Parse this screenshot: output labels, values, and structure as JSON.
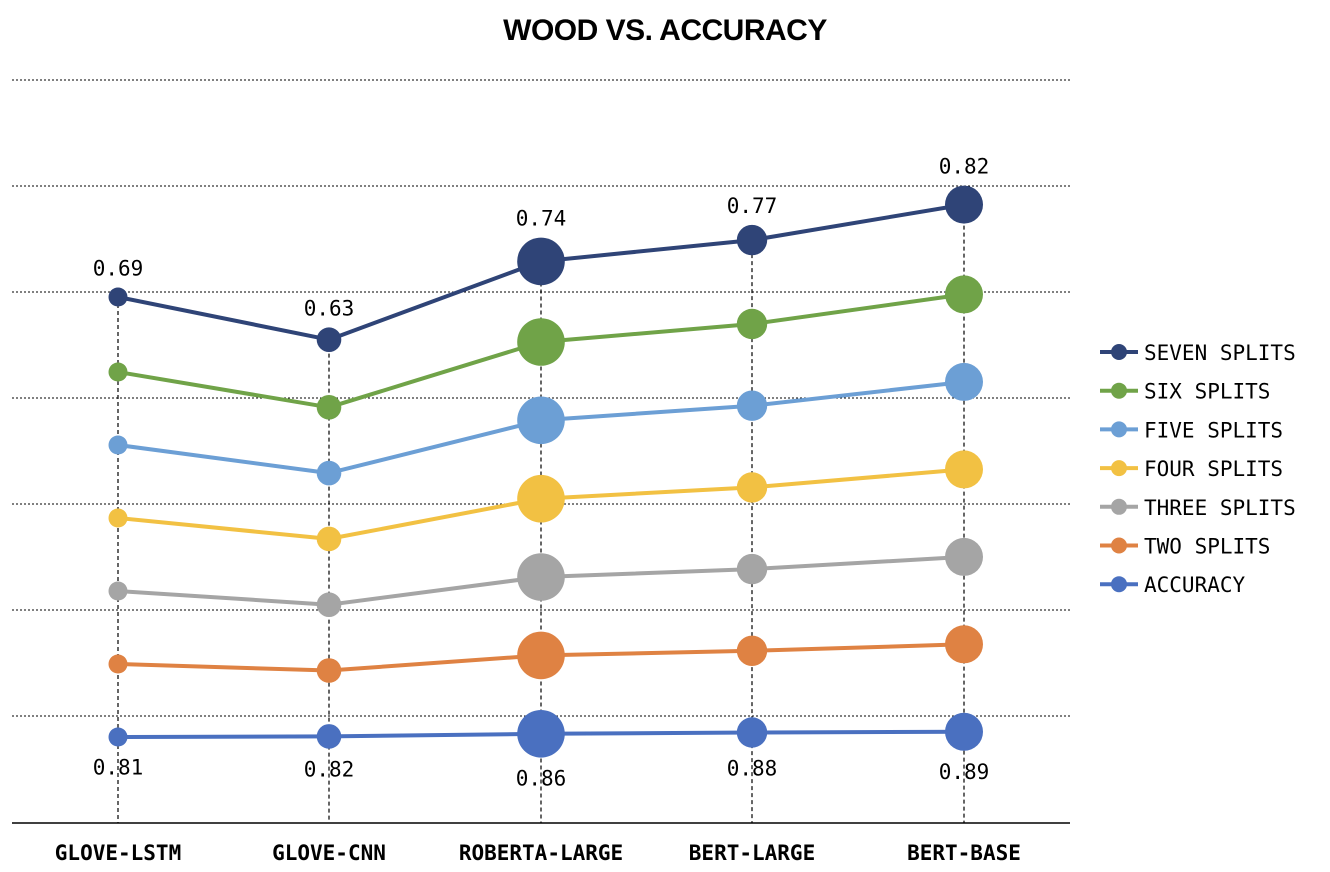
{
  "chart_data": {
    "type": "line",
    "title": "WOOD VS. ACCURACY",
    "xlabel": "",
    "ylabel": "",
    "categories": [
      "GLOVE-LSTM",
      "GLOVE-CNN",
      "ROBERTA-LARGE",
      "BERT-LARGE",
      "BERT-BASE"
    ],
    "grid": true,
    "legend_position": "right",
    "series": [
      {
        "name": "SEVEN SPLITS",
        "color": "#2F4477",
        "values": [
          0.69,
          0.63,
          0.74,
          0.77,
          0.82
        ]
      },
      {
        "name": "SIX SPLITS",
        "color": "#70A348",
        "values": [
          null,
          null,
          null,
          null,
          null
        ]
      },
      {
        "name": "FIVE SPLITS",
        "color": "#6C9FD5",
        "values": [
          null,
          null,
          null,
          null,
          null
        ]
      },
      {
        "name": "FOUR SPLITS",
        "color": "#F2C143",
        "values": [
          null,
          null,
          null,
          null,
          null
        ]
      },
      {
        "name": "THREE SPLITS",
        "color": "#A5A5A5",
        "values": [
          null,
          null,
          null,
          null,
          null
        ]
      },
      {
        "name": "TWO SPLITS",
        "color": "#DF8243",
        "values": [
          null,
          null,
          null,
          null,
          null
        ]
      },
      {
        "name": "ACCURACY",
        "color": "#4A70C0",
        "values": [
          0.81,
          0.82,
          0.86,
          0.88,
          0.89
        ]
      }
    ],
    "labeled_series": [
      "SEVEN SPLITS",
      "ACCURACY"
    ],
    "bubble_size_by_category": [
      1,
      1.3,
      2.5,
      1.6,
      2.0
    ]
  }
}
